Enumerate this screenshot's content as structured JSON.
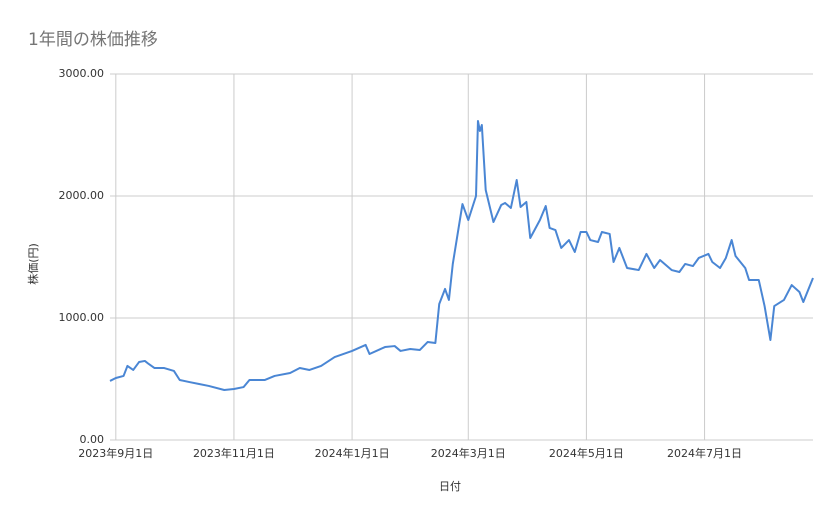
{
  "chart_data": {
    "type": "line",
    "title": "1年間の株価推移",
    "x_label": "日付",
    "y_label": "株価(円)",
    "x": [
      "2023-08-29",
      "2023-09-01",
      "2023-09-05",
      "2023-09-07",
      "2023-09-10",
      "2023-09-13",
      "2023-09-16",
      "2023-09-18",
      "2023-09-21",
      "2023-09-26",
      "2023-10-01",
      "2023-10-04",
      "2023-10-09",
      "2023-10-14",
      "2023-10-19",
      "2023-10-27",
      "2023-11-01",
      "2023-11-06",
      "2023-11-09",
      "2023-11-17",
      "2023-11-22",
      "2023-11-30",
      "2023-12-05",
      "2023-12-10",
      "2023-12-16",
      "2023-12-23",
      "2024-01-01",
      "2024-01-08",
      "2024-01-10",
      "2024-01-18",
      "2024-01-23",
      "2024-01-26",
      "2024-01-31",
      "2024-02-05",
      "2024-02-09",
      "2024-02-13",
      "2024-02-15",
      "2024-02-18",
      "2024-02-20",
      "2024-02-22",
      "2024-02-25",
      "2024-02-27",
      "2024-03-01",
      "2024-03-05",
      "2024-03-06",
      "2024-03-07",
      "2024-03-08",
      "2024-03-10",
      "2024-03-14",
      "2024-03-18",
      "2024-03-20",
      "2024-03-23",
      "2024-03-26",
      "2024-03-28",
      "2024-03-31",
      "2024-04-02",
      "2024-04-07",
      "2024-04-10",
      "2024-04-12",
      "2024-04-15",
      "2024-04-18",
      "2024-04-22",
      "2024-04-25",
      "2024-04-28",
      "2024-05-01",
      "2024-05-03",
      "2024-05-07",
      "2024-05-09",
      "2024-05-13",
      "2024-05-15",
      "2024-05-18",
      "2024-05-22",
      "2024-05-28",
      "2024-06-01",
      "2024-06-05",
      "2024-06-08",
      "2024-06-14",
      "2024-06-18",
      "2024-06-21",
      "2024-06-25",
      "2024-06-28",
      "2024-07-03",
      "2024-07-05",
      "2024-07-09",
      "2024-07-12",
      "2024-07-15",
      "2024-07-17",
      "2024-07-22",
      "2024-07-24",
      "2024-07-29",
      "2024-08-01",
      "2024-08-04",
      "2024-08-06",
      "2024-08-11",
      "2024-08-15",
      "2024-08-19",
      "2024-08-21",
      "2024-08-26"
    ],
    "values": [
      484,
      508,
      525,
      607,
      574,
      639,
      648,
      623,
      590,
      590,
      566,
      492,
      475,
      459,
      443,
      410,
      418,
      434,
      492,
      492,
      525,
      549,
      590,
      574,
      607,
      680,
      730,
      779,
      705,
      762,
      770,
      730,
      746,
      738,
      803,
      795,
      1115,
      1238,
      1148,
      1443,
      1738,
      1934,
      1803,
      2000,
      2615,
      2533,
      2582,
      2049,
      1787,
      1926,
      1943,
      1902,
      2131,
      1910,
      1951,
      1656,
      1803,
      1918,
      1738,
      1721,
      1574,
      1639,
      1541,
      1705,
      1705,
      1639,
      1623,
      1705,
      1689,
      1459,
      1574,
      1410,
      1393,
      1525,
      1410,
      1475,
      1393,
      1377,
      1443,
      1426,
      1492,
      1525,
      1459,
      1410,
      1492,
      1639,
      1508,
      1410,
      1311,
      1311,
      1098,
      820,
      1098,
      1148,
      1270,
      1213,
      1131,
      1328
    ],
    "color": "#4a86d4",
    "xlim": [
      "2023-08-29",
      "2024-08-26"
    ],
    "xticks": [
      {
        "value": "2023-09-01",
        "label": "2023年9月1日"
      },
      {
        "value": "2023-11-01",
        "label": "2023年11月1日"
      },
      {
        "value": "2024-01-01",
        "label": "2024年1月1日"
      },
      {
        "value": "2024-03-01",
        "label": "2024年3月1日"
      },
      {
        "value": "2024-05-01",
        "label": "2024年5月1日"
      },
      {
        "value": "2024-07-01",
        "label": "2024年7月1日"
      }
    ],
    "ylim": [
      0,
      3000
    ],
    "yticks": [
      {
        "value": 0,
        "label": "0.00"
      },
      {
        "value": 1000,
        "label": "1000.00"
      },
      {
        "value": 2000,
        "label": "2000.00"
      },
      {
        "value": 3000,
        "label": "3000.00"
      }
    ],
    "grid": true
  }
}
